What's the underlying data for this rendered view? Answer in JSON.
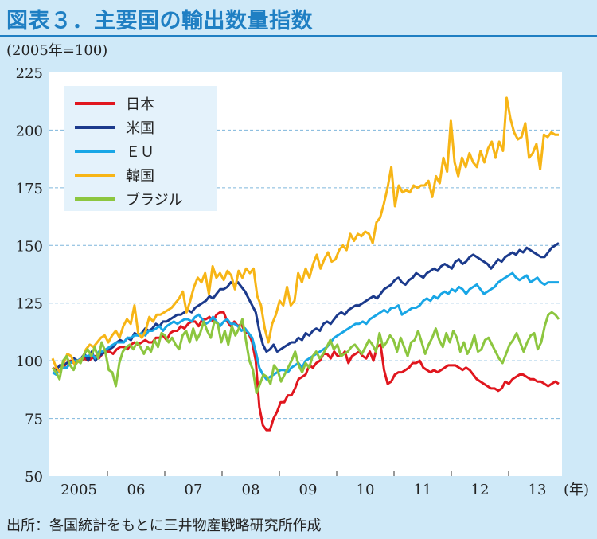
{
  "title": "図表３．主要国の輸出数量指数",
  "unit_label": "(2005年=100)",
  "source": "出所：各国統計をもとに三井物産戦略研究所作成",
  "colors": {
    "background": "#cfe9f8",
    "plot_bg": "#ffffff",
    "title": "#1f7fc3",
    "grid": "#7fb6dc"
  },
  "chart_data": {
    "type": "line",
    "ylim": [
      50,
      225
    ],
    "yticks": [
      50,
      75,
      100,
      125,
      150,
      175,
      200,
      225
    ],
    "x_tick_labels": [
      "2005",
      "06",
      "07",
      "08",
      "09",
      "10",
      "11",
      "12",
      "13"
    ],
    "x_unit": "(年)",
    "x_range": [
      "2005-01",
      "2013-11"
    ],
    "grid": true,
    "legend_position": "top-left",
    "series": [
      {
        "name": "日本",
        "color": "#e0161e",
        "values": [
          97,
          96,
          98,
          97,
          99,
          100,
          99,
          100,
          100,
          101,
          100,
          101,
          102,
          101,
          103,
          104,
          104,
          103,
          105,
          106,
          106,
          105,
          107,
          108,
          107,
          108,
          109,
          108,
          108,
          110,
          110,
          111,
          109,
          112,
          113,
          113,
          115,
          114,
          116,
          117,
          117,
          115,
          118,
          118,
          119,
          117,
          120,
          121,
          121,
          117,
          115,
          117,
          115,
          116,
          112,
          112,
          108,
          100,
          80,
          72,
          70,
          70,
          75,
          78,
          82,
          82,
          85,
          85,
          88,
          92,
          93,
          94,
          98,
          97,
          99,
          100,
          103,
          103,
          101,
          104,
          102,
          102,
          104,
          99,
          102,
          103,
          104,
          102,
          101,
          104,
          100,
          106,
          107,
          96,
          90,
          91,
          94,
          95,
          95,
          96,
          97,
          99,
          99,
          100,
          97,
          96,
          95,
          96,
          95,
          96,
          97,
          98,
          98,
          98,
          97,
          96,
          97,
          96,
          94,
          92,
          91,
          90,
          89,
          88,
          88,
          87,
          88,
          91,
          90,
          92,
          93,
          94,
          94,
          93,
          92,
          92,
          91,
          91,
          90,
          89,
          90,
          91,
          90
        ],
        "overlay_values": [],
        "overlay_start": 0
      },
      {
        "name": "米国",
        "color": "#1b3a8c",
        "values": [
          96,
          96,
          98,
          98,
          99,
          99,
          101,
          100,
          101,
          103,
          100,
          104,
          100,
          102,
          103,
          105,
          105,
          106,
          108,
          109,
          108,
          110,
          109,
          112,
          111,
          112,
          114,
          113,
          114,
          116,
          115,
          117,
          117,
          118,
          119,
          120,
          120,
          121,
          122,
          121,
          123,
          124,
          125,
          126,
          128,
          127,
          129,
          131,
          131,
          132,
          134,
          133,
          134,
          132,
          130,
          127,
          124,
          121,
          113,
          107,
          104,
          105,
          107,
          104,
          105,
          106,
          107,
          108,
          108,
          110,
          109,
          112,
          111,
          113,
          114,
          113,
          116,
          117,
          116,
          118,
          120,
          121,
          120,
          122,
          123,
          124,
          124,
          125,
          126,
          127,
          128,
          127,
          129,
          131,
          132,
          133,
          135,
          136,
          134,
          133,
          135,
          136,
          138,
          137,
          136,
          138,
          139,
          140,
          139,
          141,
          142,
          141,
          140,
          143,
          144,
          142,
          143,
          145,
          146,
          145,
          144,
          143,
          142,
          140,
          142,
          144,
          143,
          145,
          146,
          147,
          146,
          148,
          147,
          149,
          148,
          147,
          146,
          145,
          145,
          147,
          149,
          150,
          151
        ],
        "overlay_values": [],
        "overlay_start": 0
      },
      {
        "name": "ＥＵ",
        "color": "#18a6e6",
        "values": [
          95,
          94,
          96,
          97,
          97,
          99,
          100,
          100,
          101,
          102,
          102,
          103,
          101,
          104,
          104,
          105,
          106,
          107,
          108,
          108,
          108,
          110,
          110,
          111,
          111,
          112,
          111,
          113,
          113,
          114,
          115,
          113,
          115,
          116,
          117,
          116,
          117,
          118,
          118,
          117,
          119,
          120,
          118,
          116,
          117,
          119,
          117,
          115,
          117,
          118,
          116,
          116,
          115,
          113,
          114,
          112,
          110,
          104,
          97,
          94,
          92,
          93,
          94,
          95,
          96,
          96,
          95,
          97,
          98,
          99,
          97,
          100,
          101,
          102,
          103,
          104,
          105,
          106,
          108,
          110,
          111,
          112,
          113,
          114,
          115,
          116,
          116,
          117,
          116,
          118,
          119,
          120,
          121,
          122,
          121,
          123,
          123,
          124,
          120,
          121,
          122,
          123,
          123,
          124,
          126,
          127,
          126,
          128,
          127,
          129,
          130,
          129,
          131,
          130,
          132,
          131,
          129,
          131,
          132,
          133,
          131,
          129,
          130,
          131,
          132,
          134,
          135,
          136,
          137,
          138,
          136,
          135,
          136,
          137,
          134,
          135,
          136,
          134,
          133,
          134,
          134,
          134,
          134
        ],
        "overlay_values": [],
        "overlay_start": 0
      },
      {
        "name": "韓国",
        "color": "#f7b516",
        "values": [
          101,
          97,
          95,
          99,
          103,
          102,
          98,
          100,
          101,
          105,
          107,
          106,
          108,
          110,
          111,
          108,
          111,
          113,
          110,
          115,
          118,
          116,
          124,
          112,
          110,
          113,
          119,
          117,
          120,
          120,
          121,
          122,
          123,
          125,
          127,
          130,
          121,
          126,
          132,
          136,
          134,
          138,
          129,
          141,
          136,
          138,
          135,
          139,
          137,
          131,
          139,
          136,
          140,
          138,
          140,
          128,
          124,
          114,
          108,
          116,
          120,
          126,
          124,
          132,
          124,
          126,
          138,
          134,
          140,
          136,
          142,
          146,
          140,
          144,
          147,
          143,
          144,
          148,
          150,
          148,
          155,
          152,
          155,
          154,
          156,
          155,
          151,
          160,
          162,
          168,
          175,
          184,
          167,
          176,
          173,
          174,
          173,
          176,
          175,
          176,
          176,
          178,
          171,
          180,
          177,
          188,
          182,
          204,
          186,
          180,
          188,
          184,
          190,
          186,
          184,
          191,
          186,
          192,
          195,
          188,
          195,
          191,
          214,
          205,
          199,
          196,
          197,
          203,
          188,
          190,
          194,
          183,
          198,
          197,
          199,
          198,
          198
        ],
        "overlay_values": [],
        "overlay_start": 0
      },
      {
        "name": "ブラジル",
        "color": "#8cc63f",
        "values": [
          97,
          95,
          92,
          100,
          102,
          98,
          96,
          100,
          99,
          103,
          105,
          102,
          106,
          101,
          108,
          104,
          96,
          95,
          89,
          99,
          104,
          106,
          107,
          105,
          108,
          106,
          103,
          106,
          104,
          109,
          106,
          112,
          111,
          108,
          110,
          107,
          105,
          111,
          113,
          108,
          114,
          109,
          112,
          117,
          113,
          110,
          117,
          116,
          108,
          113,
          107,
          115,
          111,
          114,
          118,
          109,
          100,
          96,
          86,
          90,
          94,
          93,
          90,
          98,
          96,
          91,
          94,
          97,
          100,
          104,
          98,
          95,
          99,
          97,
          102,
          104,
          101,
          103,
          106,
          109,
          105,
          107,
          102,
          103,
          104,
          106,
          107,
          105,
          103,
          106,
          109,
          107,
          104,
          112,
          106,
          108,
          111,
          109,
          104,
          110,
          106,
          102,
          108,
          109,
          113,
          108,
          103,
          107,
          110,
          114,
          109,
          106,
          112,
          108,
          113,
          110,
          104,
          108,
          103,
          106,
          111,
          104,
          105,
          109,
          110,
          107,
          104,
          101,
          99,
          103,
          107,
          109,
          112,
          108,
          104,
          108,
          111,
          112,
          105,
          108,
          115,
          120,
          121,
          120,
          118
        ],
        "overlay_values": [],
        "overlay_start": 0
      }
    ]
  }
}
